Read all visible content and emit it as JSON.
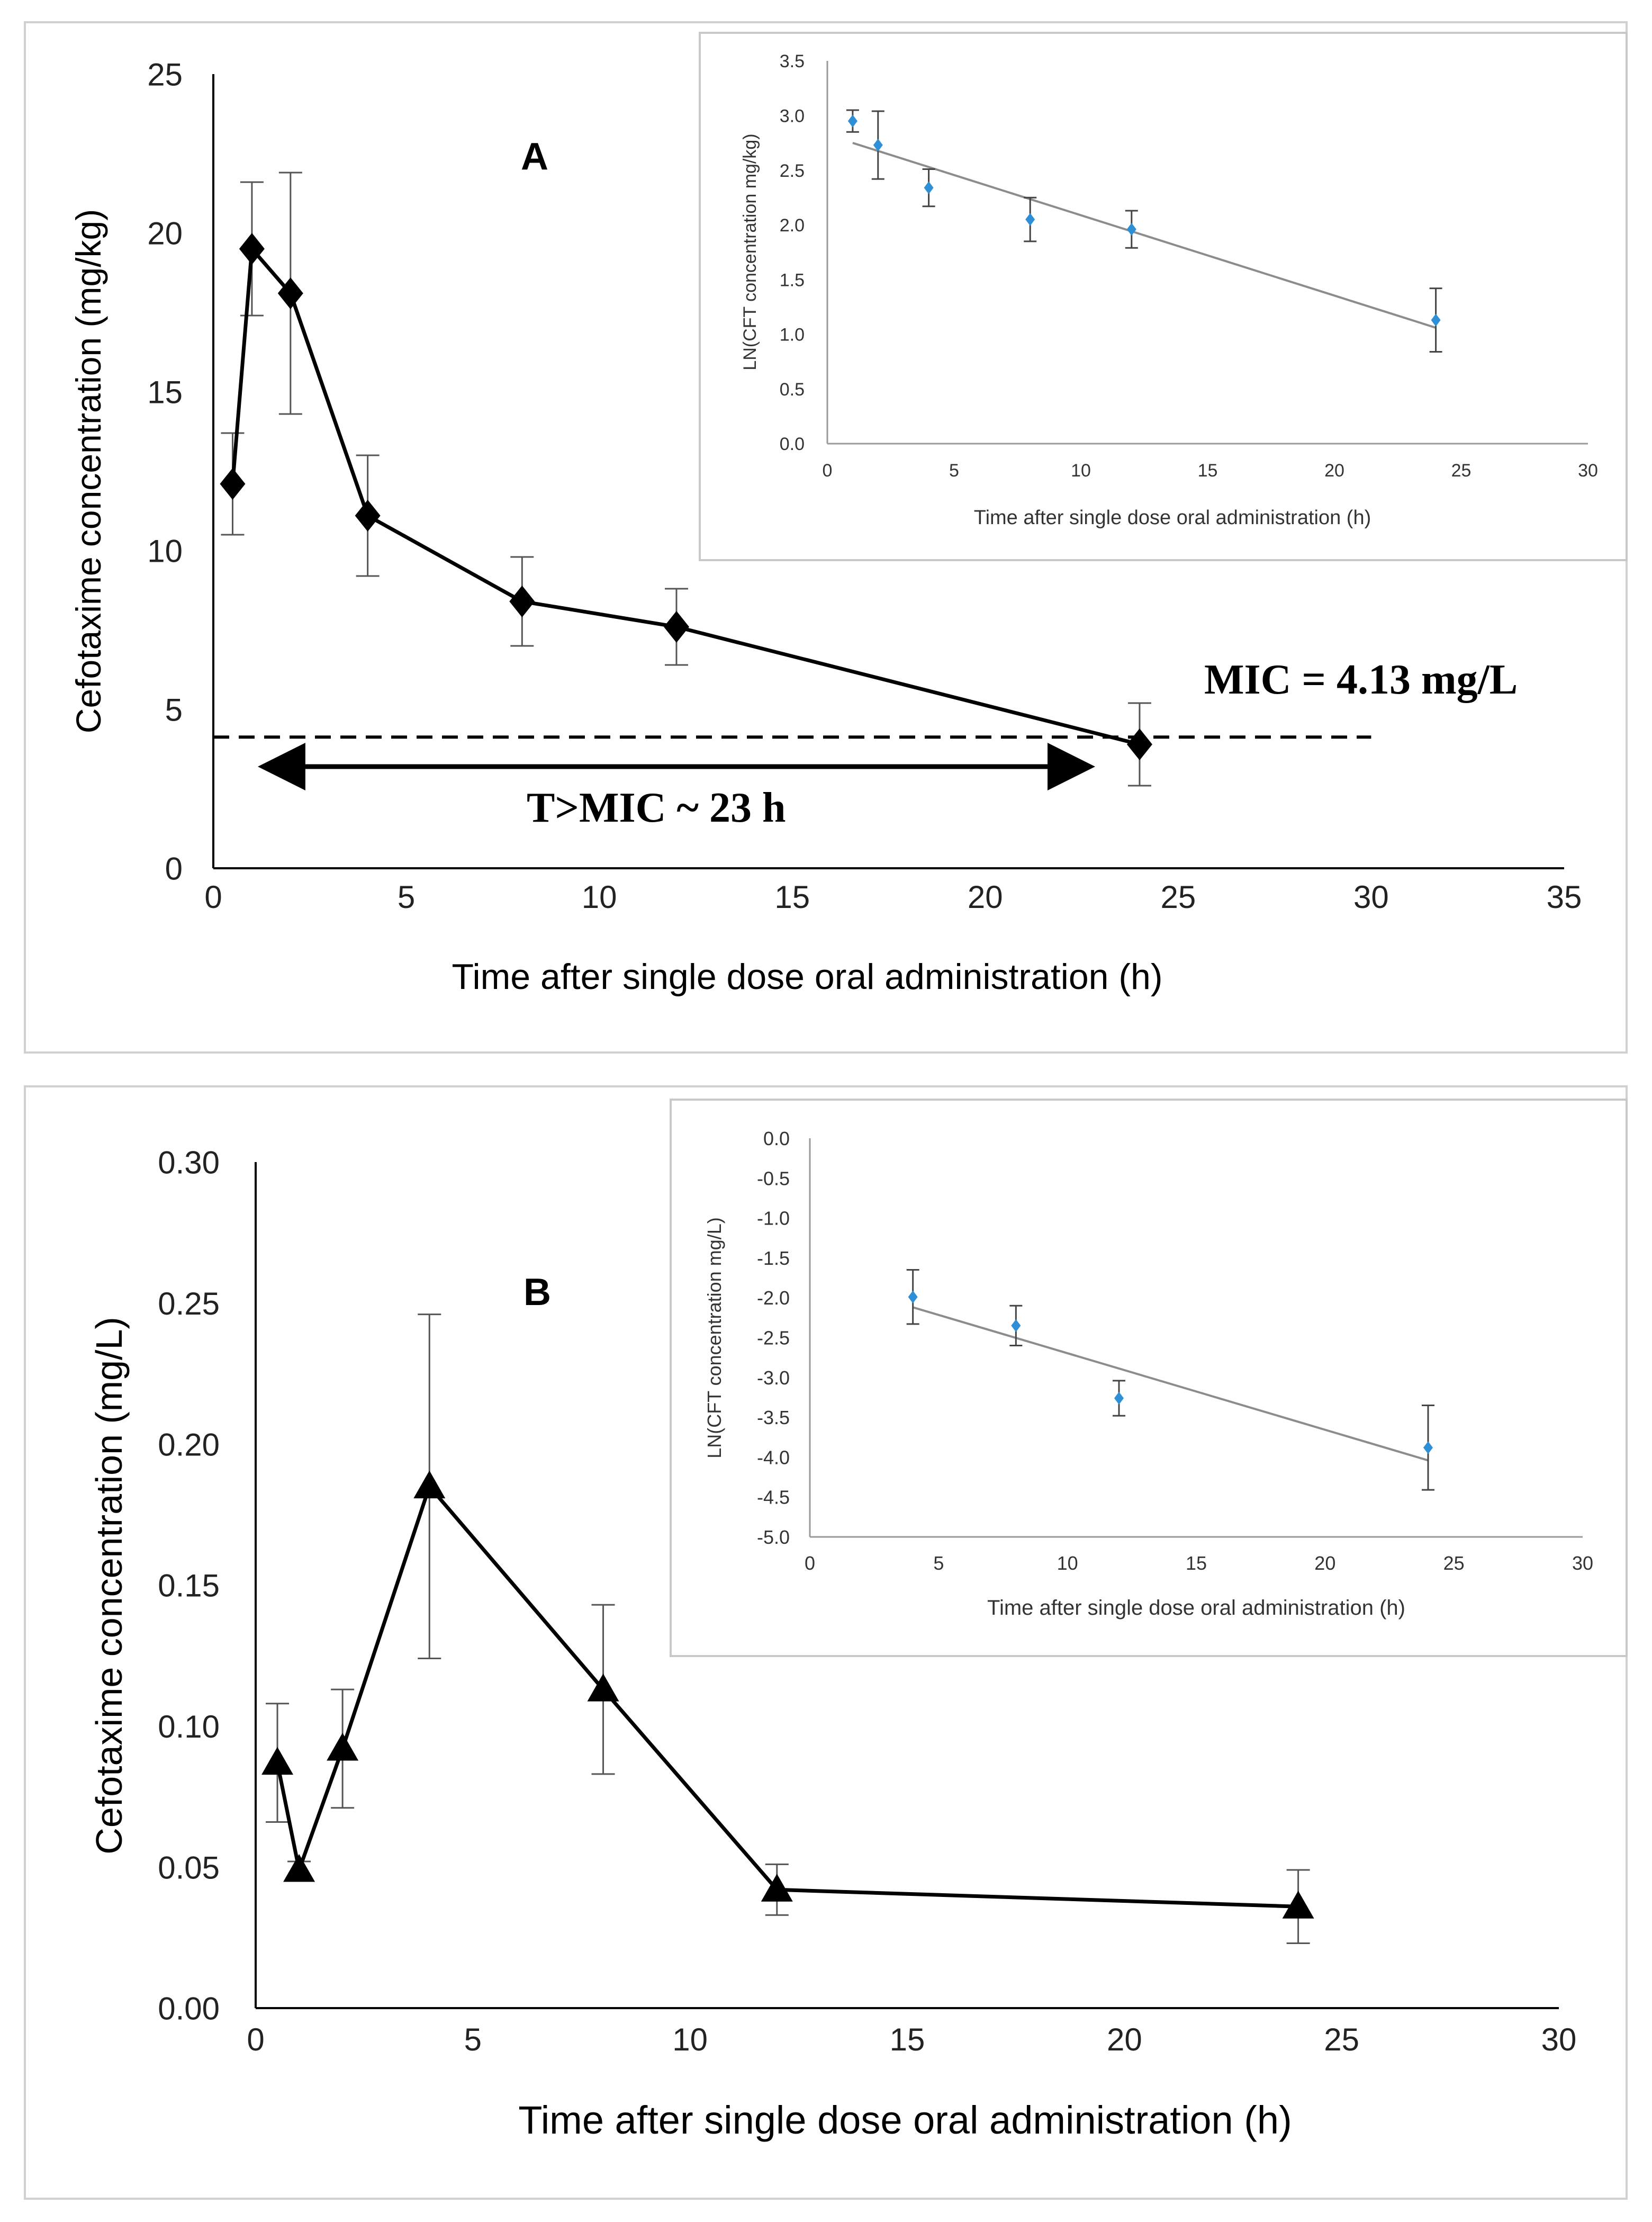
{
  "chart_data": [
    {
      "panel": "A",
      "type": "line",
      "title": "A",
      "xlabel": "Time after single dose oral administration (h)",
      "ylabel": "Cefotaxime concentration (mg/kg)",
      "xlim": [
        0,
        35
      ],
      "ylim": [
        0,
        25
      ],
      "xticks": [
        0,
        5,
        10,
        15,
        20,
        25,
        30,
        35
      ],
      "yticks": [
        0,
        5,
        10,
        15,
        20,
        25
      ],
      "marker": "diamond",
      "x": [
        0.5,
        1,
        2,
        4,
        8,
        12,
        24
      ],
      "y": [
        12.1,
        19.5,
        18.1,
        11.1,
        8.4,
        7.6,
        3.9
      ],
      "err": [
        1.6,
        2.1,
        3.8,
        1.9,
        1.4,
        1.2,
        1.3
      ],
      "threshold": {
        "value": 4.13,
        "label": "MIC = 4.13 mg/L",
        "x_end": 30
      },
      "range_arrow": {
        "from": 1,
        "to": 23,
        "label": "T>MIC ~ 23 h"
      },
      "inset": {
        "type": "scatter",
        "xlabel": "Time after single dose oral administration (h)",
        "ylabel": "LN(CFT concentration mg/kg)",
        "xlim": [
          0,
          30
        ],
        "ylim": [
          0,
          3.5
        ],
        "xticks": [
          0,
          5,
          10,
          15,
          20,
          25,
          30
        ],
        "yticks": [
          0.0,
          0.5,
          1.0,
          1.5,
          2.0,
          2.5,
          3.0,
          3.5
        ],
        "ytick_labels": [
          "0.0",
          "0.5",
          "1.0",
          "1.5",
          "2.0",
          "2.5",
          "3.0",
          "3.5"
        ],
        "x": [
          1,
          2,
          4,
          8,
          12,
          24
        ],
        "y": [
          2.95,
          2.73,
          2.34,
          2.05,
          1.96,
          1.13
        ],
        "err": [
          0.1,
          0.31,
          0.17,
          0.2,
          0.17,
          0.29
        ],
        "trend": {
          "x": [
            1,
            24
          ],
          "y": [
            2.75,
            1.06
          ]
        }
      }
    },
    {
      "panel": "B",
      "type": "line",
      "title": "B",
      "xlabel": "Time after single dose oral administration (h)",
      "ylabel": "Cefotaxime concentration (mg/L)",
      "xlim": [
        0,
        30
      ],
      "ylim": [
        0,
        0.3
      ],
      "xticks": [
        0,
        5,
        10,
        15,
        20,
        25,
        30
      ],
      "yticks": [
        0,
        0.05,
        0.1,
        0.15,
        0.2,
        0.25,
        0.3
      ],
      "ytick_labels": [
        "0.00",
        "0.05",
        "0.10",
        "0.15",
        "0.20",
        "0.25",
        "0.30"
      ],
      "marker": "triangle",
      "x": [
        0.5,
        1,
        2,
        4,
        8,
        12,
        24
      ],
      "y": [
        0.087,
        0.049,
        0.092,
        0.185,
        0.113,
        0.042,
        0.036
      ],
      "err": [
        0.021,
        0.003,
        0.021,
        0.061,
        0.03,
        0.009,
        0.013
      ],
      "inset": {
        "type": "scatter",
        "xlabel": "Time after single dose oral administration (h)",
        "ylabel": "LN(CFT concentration mg/L)",
        "xlim": [
          0,
          30
        ],
        "ylim": [
          -5,
          0
        ],
        "xticks": [
          0,
          5,
          10,
          15,
          20,
          25,
          30
        ],
        "yticks": [
          0,
          -0.5,
          -1,
          -1.5,
          -2,
          -2.5,
          -3,
          -3.5,
          -4,
          -4.5,
          -5
        ],
        "ytick_labels": [
          "0.0",
          "-0.5",
          "-1.0",
          "-1.5",
          "-2.0",
          "-2.5",
          "-3.0",
          "-3.5",
          "-4.0",
          "-4.5",
          "-5.0"
        ],
        "x": [
          4,
          8,
          12,
          24
        ],
        "y": [
          -1.99,
          -2.35,
          -3.26,
          -3.88
        ],
        "err": [
          0.34,
          0.25,
          0.22,
          0.53
        ],
        "trend": {
          "x": [
            4,
            24
          ],
          "y": [
            -2.12,
            -4.04
          ]
        }
      }
    }
  ]
}
